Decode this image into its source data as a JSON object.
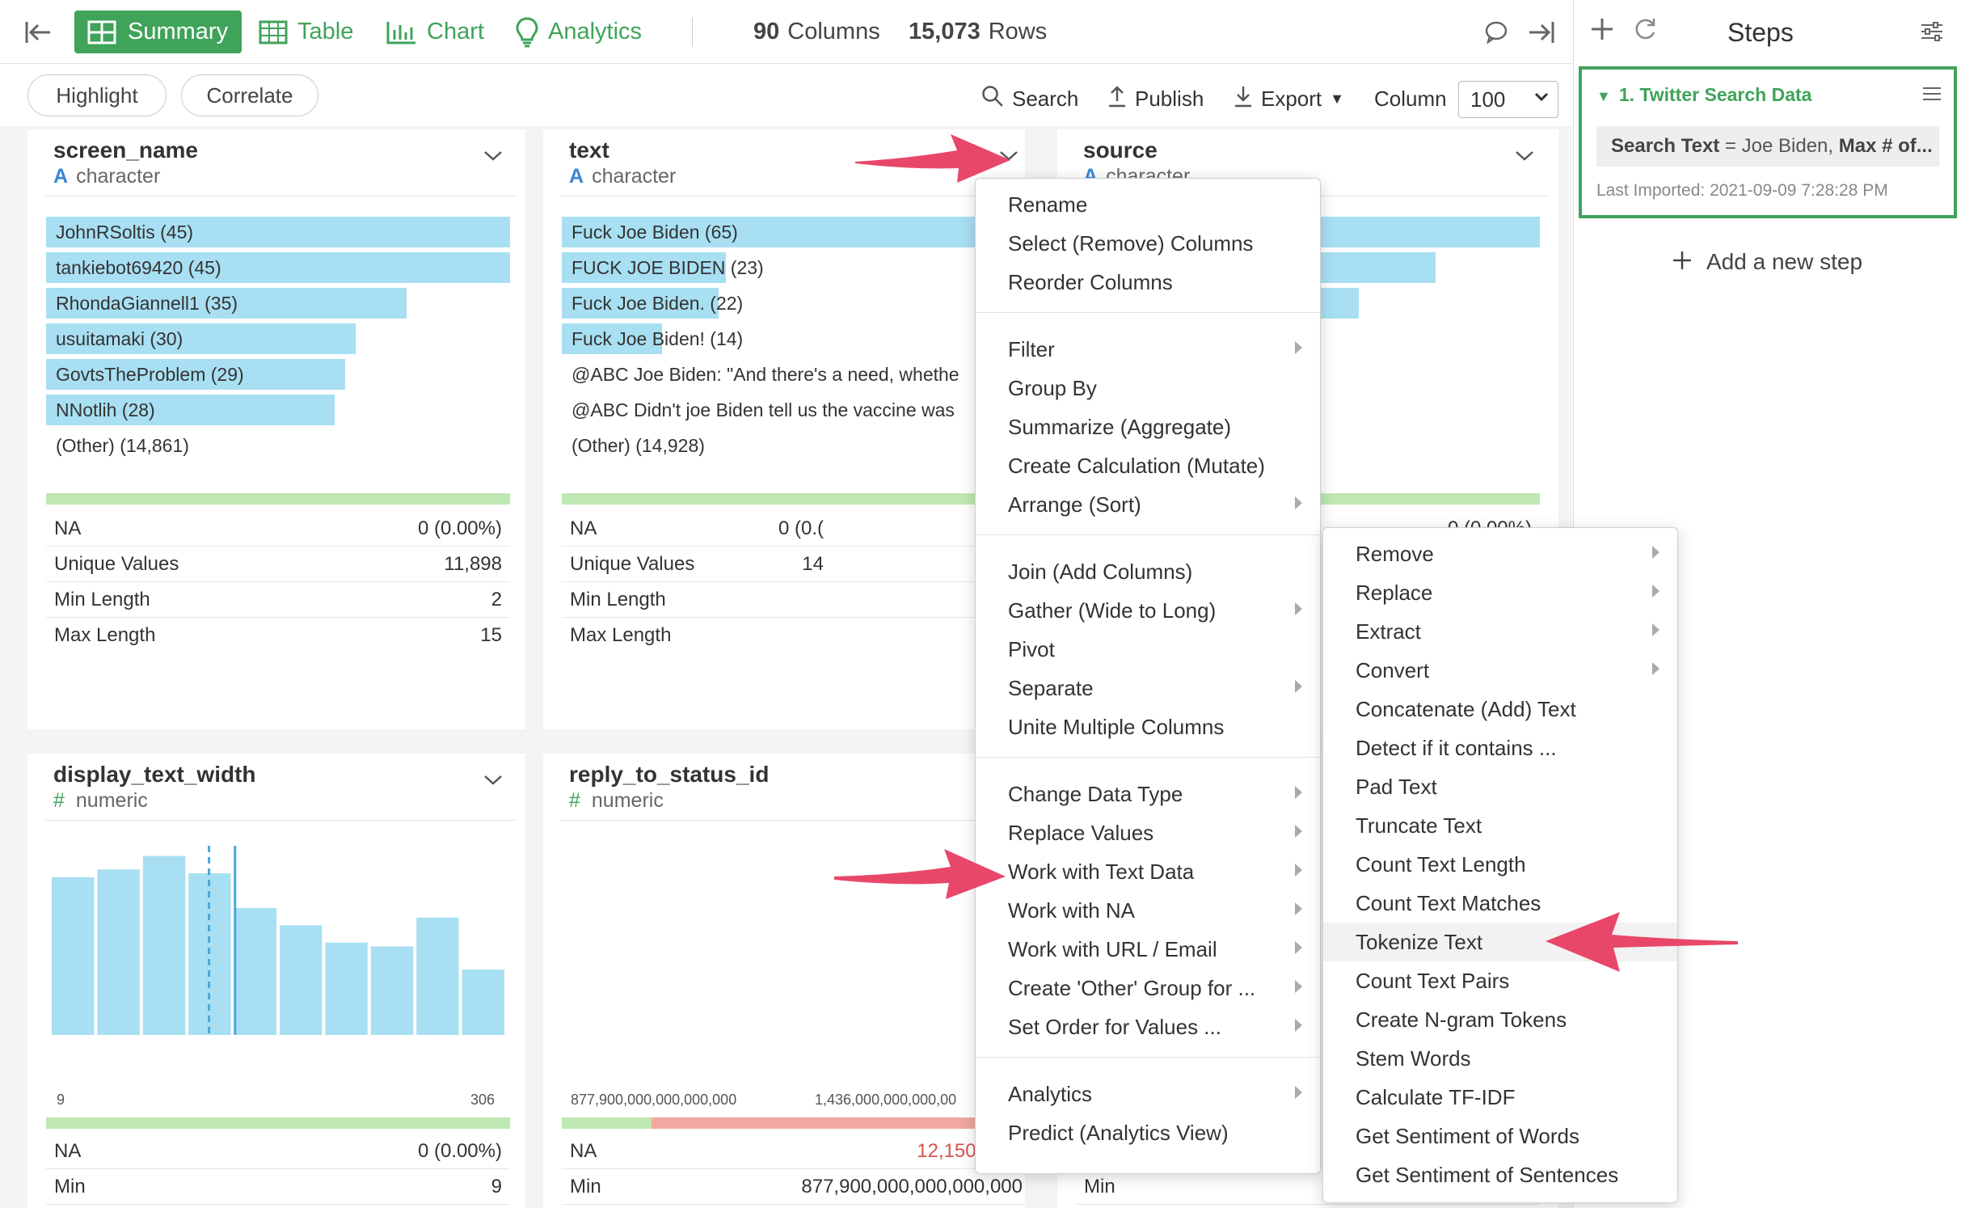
{
  "toolbar": {
    "tabs": [
      {
        "label": "Summary",
        "icon": "grid-icon"
      },
      {
        "label": "Table",
        "icon": "table-icon"
      },
      {
        "label": "Chart",
        "icon": "bar-chart-icon"
      },
      {
        "label": "Analytics",
        "icon": "lightbulb-icon"
      }
    ],
    "columns_count": "90",
    "columns_label": "Columns",
    "rows_count": "15,073",
    "rows_label": "Rows"
  },
  "toolbar2": {
    "highlight": "Highlight",
    "correlate": "Correlate",
    "search": "Search",
    "publish": "Publish",
    "export": "Export",
    "column_label": "Column",
    "column_value": "100"
  },
  "cards": {
    "screen_name": {
      "title": "screen_name",
      "type_icon": "A",
      "type": "character",
      "bars": [
        {
          "label": "JohnRSoltis (45)",
          "value": 45
        },
        {
          "label": "tankiebot69420 (45)",
          "value": 45
        },
        {
          "label": "RhondaGiannell1 (35)",
          "value": 35
        },
        {
          "label": "usuitamaki (30)",
          "value": 30
        },
        {
          "label": "GovtsTheProblem (29)",
          "value": 29
        },
        {
          "label": "NNotlih (28)",
          "value": 28
        }
      ],
      "other": "(Other) (14,861)",
      "stats": [
        {
          "label": "NA",
          "value": "0 (0.00%)"
        },
        {
          "label": "Unique Values",
          "value": "11,898"
        },
        {
          "label": "Min Length",
          "value": "2"
        },
        {
          "label": "Max Length",
          "value": "15"
        }
      ]
    },
    "text": {
      "title": "text",
      "type_icon": "A",
      "type": "character",
      "bars": [
        {
          "label": "Fuck Joe Biden (65)",
          "value": 65
        },
        {
          "label": "FUCK JOE BIDEN (23)",
          "value": 23
        },
        {
          "label": "Fuck Joe Biden. (22)",
          "value": 22
        },
        {
          "label": "Fuck Joe Biden! (14)",
          "value": 14
        },
        {
          "label": "@ABC Joe Biden: \"And there's a need, whethe",
          "value": 0
        },
        {
          "label": "@ABC Didn't joe Biden tell us the vaccine was",
          "value": 0
        }
      ],
      "other": "(Other) (14,928)",
      "stats": [
        {
          "label": "NA",
          "value": "0 (0.("
        },
        {
          "label": "Unique Values",
          "value": "14"
        },
        {
          "label": "Min Length",
          "value": ""
        },
        {
          "label": "Max Length",
          "value": ""
        }
      ]
    },
    "source": {
      "title": "source",
      "type_icon": "A",
      "type": "character",
      "stat_partial": "0 (0.00%)"
    },
    "display_text_width": {
      "title": "display_text_width",
      "type_icon": "#",
      "type": "numeric",
      "hist": [
        0.82,
        0.86,
        0.93,
        0.84,
        0.66,
        0.57,
        0.48,
        0.46,
        0.61,
        0.34
      ],
      "x_min": "9",
      "x_max": "306",
      "stats": [
        {
          "label": "NA",
          "value": "0 (0.00%)"
        },
        {
          "label": "Min",
          "value": "9"
        }
      ]
    },
    "reply_to_status_id": {
      "title": "reply_to_status_id",
      "type_icon": "#",
      "type": "numeric",
      "x_min": "877,900,000,000,000,000",
      "x_max": "1,436,000,000,000,00",
      "na_fraction": 0.806,
      "stats": [
        {
          "label": "NA",
          "value": "12,150 (80.6"
        },
        {
          "label": "Min",
          "value": "877,900,000,000,000,000"
        }
      ]
    },
    "partial_min_label": "Min"
  },
  "steps": {
    "title": "Steps",
    "step_name": "1. Twitter Search Data",
    "param_key1": "Search Text",
    "param_eq1": " = Joe Biden, ",
    "param_key2": "Max # of...",
    "last_imported": "Last Imported: 2021-09-09 7:28:28 PM",
    "add_step": "Add a new step"
  },
  "context_menu": [
    {
      "label": "Rename",
      "sub": false
    },
    {
      "label": "Select (Remove) Columns",
      "sub": false
    },
    {
      "label": "Reorder Columns",
      "sub": false
    },
    {
      "sep": true
    },
    {
      "label": "Filter",
      "sub": true
    },
    {
      "label": "Group By",
      "sub": false
    },
    {
      "label": "Summarize (Aggregate)",
      "sub": false
    },
    {
      "label": "Create Calculation (Mutate)",
      "sub": false
    },
    {
      "label": "Arrange (Sort)",
      "sub": true
    },
    {
      "sep": true
    },
    {
      "label": "Join (Add Columns)",
      "sub": false
    },
    {
      "label": "Gather (Wide to Long)",
      "sub": true
    },
    {
      "label": "Pivot",
      "sub": false
    },
    {
      "label": "Separate",
      "sub": true
    },
    {
      "label": "Unite Multiple Columns",
      "sub": false
    },
    {
      "sep": true
    },
    {
      "label": "Change Data Type",
      "sub": true
    },
    {
      "label": "Replace Values",
      "sub": true
    },
    {
      "label": "Work with Text Data",
      "sub": true
    },
    {
      "label": "Work with NA",
      "sub": true
    },
    {
      "label": "Work with URL / Email",
      "sub": true
    },
    {
      "label": "Create 'Other' Group for ...",
      "sub": true
    },
    {
      "label": "Set Order for Values ...",
      "sub": true
    },
    {
      "sep": true
    },
    {
      "label": "Analytics",
      "sub": true
    },
    {
      "label": "Predict (Analytics View)",
      "sub": false
    }
  ],
  "text_submenu": [
    {
      "label": "Remove",
      "sub": true
    },
    {
      "label": "Replace",
      "sub": true
    },
    {
      "label": "Extract",
      "sub": true
    },
    {
      "label": "Convert",
      "sub": true
    },
    {
      "label": "Concatenate (Add) Text",
      "sub": false
    },
    {
      "label": "Detect if it contains ...",
      "sub": false
    },
    {
      "label": "Pad Text",
      "sub": false
    },
    {
      "label": "Truncate Text",
      "sub": false
    },
    {
      "label": "Count Text Length",
      "sub": false
    },
    {
      "label": "Count Text Matches",
      "sub": false
    },
    {
      "label": "Tokenize Text",
      "sub": false,
      "highlight": true
    },
    {
      "label": "Count Text Pairs",
      "sub": false
    },
    {
      "label": "Create N-gram Tokens",
      "sub": false
    },
    {
      "label": "Stem Words",
      "sub": false
    },
    {
      "label": "Calculate TF-IDF",
      "sub": false
    },
    {
      "label": "Get Sentiment of Words",
      "sub": false
    },
    {
      "label": "Get Sentiment of Sentences",
      "sub": false
    }
  ],
  "colors": {
    "accent": "#3fa35a",
    "bar": "#a8dff2",
    "arrow": "#e8476a",
    "na_red": "#f0a8a0",
    "error_text": "#d9534f"
  }
}
